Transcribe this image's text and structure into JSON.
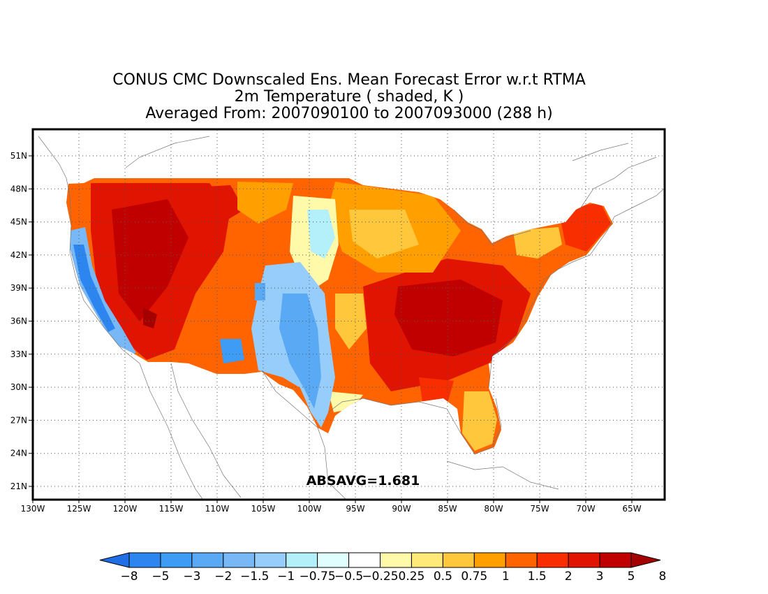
{
  "title": {
    "line1": "CONUS CMC Downscaled Ens. Mean Forecast Error w.r.t RTMA",
    "line2": "2m Temperature ( shaded, K )",
    "line3": "Averaged From: 2007090100 to 2007093000 (288 h)"
  },
  "map": {
    "lon_labels": [
      "130W",
      "125W",
      "120W",
      "115W",
      "110W",
      "105W",
      "100W",
      "95W",
      "90W",
      "85W",
      "80W",
      "75W",
      "70W",
      "65W"
    ],
    "lat_labels": [
      "51N",
      "48N",
      "45N",
      "42N",
      "39N",
      "36N",
      "33N",
      "30N",
      "27N",
      "24N",
      "21N"
    ],
    "annotation": "ABSAVG=1.681"
  },
  "colorbar": {
    "colors": [
      "#1f6ee6",
      "#2d86ef",
      "#3e9cf4",
      "#5aa9f5",
      "#78b8f7",
      "#96cdfa",
      "#b4f0fa",
      "#e1fefe",
      "#ffffff",
      "#fffaaa",
      "#ffe978",
      "#ffc83c",
      "#ffa000",
      "#ff6400",
      "#f82d00",
      "#e01400",
      "#c00000",
      "#a50000"
    ],
    "labels": [
      "−8",
      "−5",
      "−3",
      "−2",
      "−1.5",
      "−1",
      "−0.75",
      "−0.5",
      "−0.25",
      "0.25",
      "0.5",
      "0.75",
      "1",
      "1.5",
      "2",
      "3",
      "5",
      "8"
    ]
  }
}
